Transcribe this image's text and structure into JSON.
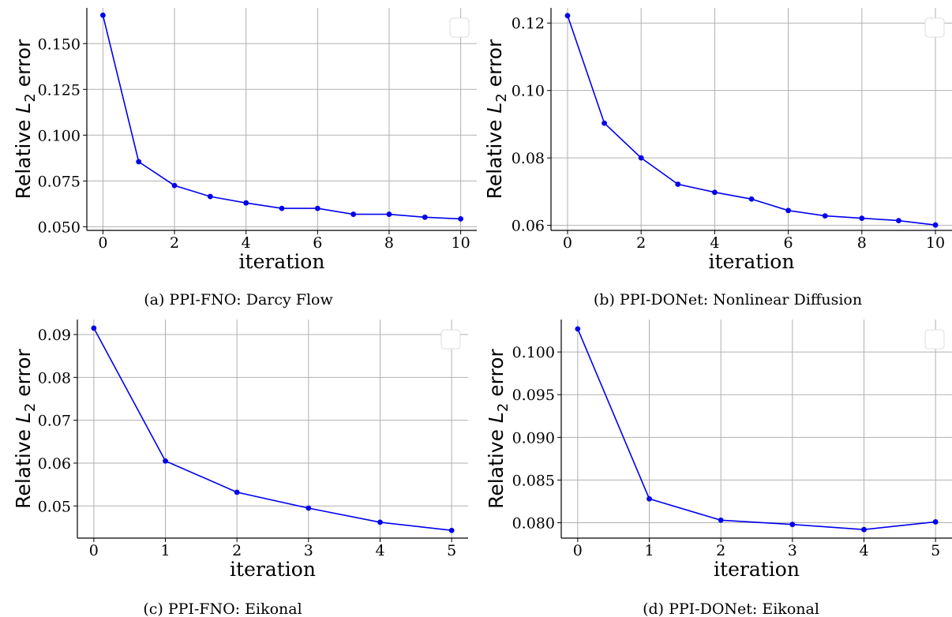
{
  "chart_data": [
    {
      "type": "line",
      "caption": "(a) PPI-FNO: Darcy Flow",
      "xlabel": "iteration",
      "ylabel": {
        "prefix": "Relative ",
        "var": "L",
        "sub": "2",
        "suffix": " error"
      },
      "x": [
        0,
        1,
        2,
        3,
        4,
        5,
        6,
        7,
        8,
        9,
        10
      ],
      "series": [
        {
          "values": [
            0.1655,
            0.0855,
            0.0725,
            0.0665,
            0.063,
            0.06,
            0.06,
            0.0568,
            0.0568,
            0.0552,
            0.0543
          ]
        }
      ],
      "xlim": [
        -0.45,
        10.45
      ],
      "ylim": [
        0.048,
        0.1695
      ],
      "xticks": [
        0,
        2,
        4,
        6,
        8,
        10
      ],
      "xtick_labels": [
        "0",
        "2",
        "4",
        "6",
        "8",
        "10"
      ],
      "yticks": [
        0.05,
        0.075,
        0.1,
        0.125,
        0.15
      ],
      "ytick_labels": [
        "0.050",
        "0.075",
        "0.100",
        "0.125",
        "0.150"
      ],
      "line_color": "#0000ee",
      "grid": true,
      "legend": "empty box, top-right"
    },
    {
      "type": "line",
      "caption": "(b) PPI-DONet: Nonlinear Diffusion",
      "xlabel": "iteration",
      "ylabel": {
        "prefix": "Relative ",
        "var": "L",
        "sub": "2",
        "suffix": " error"
      },
      "x": [
        0,
        1,
        2,
        3,
        4,
        5,
        6,
        7,
        8,
        9,
        10
      ],
      "series": [
        {
          "values": [
            0.1222,
            0.0903,
            0.08,
            0.0722,
            0.0698,
            0.0678,
            0.0644,
            0.0628,
            0.0621,
            0.0614,
            0.0601
          ]
        }
      ],
      "xlim": [
        -0.45,
        10.45
      ],
      "ylim": [
        0.0585,
        0.1245
      ],
      "xticks": [
        0,
        2,
        4,
        6,
        8,
        10
      ],
      "xtick_labels": [
        "0",
        "2",
        "4",
        "6",
        "8",
        "10"
      ],
      "yticks": [
        0.06,
        0.08,
        0.1,
        0.12
      ],
      "ytick_labels": [
        "0.06",
        "0.08",
        "0.10",
        "0.12"
      ],
      "line_color": "#0000ee",
      "grid": true,
      "legend": "empty box, top-right"
    },
    {
      "type": "line",
      "caption": "(c) PPI-FNO: Eikonal",
      "xlabel": "iteration",
      "ylabel": {
        "prefix": "Relative ",
        "var": "L",
        "sub": "2",
        "suffix": " error"
      },
      "x": [
        0,
        1,
        2,
        3,
        4,
        5
      ],
      "series": [
        {
          "values": [
            0.0915,
            0.0605,
            0.0532,
            0.0495,
            0.0462,
            0.0443
          ]
        }
      ],
      "xlim": [
        -0.23,
        5.23
      ],
      "ylim": [
        0.0425,
        0.0935
      ],
      "xticks": [
        0,
        1,
        2,
        3,
        4,
        5
      ],
      "xtick_labels": [
        "0",
        "1",
        "2",
        "3",
        "4",
        "5"
      ],
      "yticks": [
        0.05,
        0.06,
        0.07,
        0.08,
        0.09
      ],
      "ytick_labels": [
        "0.05",
        "0.06",
        "0.07",
        "0.08",
        "0.09"
      ],
      "line_color": "#0000ee",
      "grid": true,
      "legend": "empty box, top-right"
    },
    {
      "type": "line",
      "caption": "(d) PPI-DONet: Eikonal",
      "xlabel": "iteration",
      "ylabel": {
        "prefix": "Relative ",
        "var": "L",
        "sub": "2",
        "suffix": " error"
      },
      "x": [
        0,
        1,
        2,
        3,
        4,
        5
      ],
      "series": [
        {
          "values": [
            0.1027,
            0.0828,
            0.0803,
            0.0798,
            0.0792,
            0.0801
          ]
        }
      ],
      "xlim": [
        -0.23,
        5.23
      ],
      "ylim": [
        0.0782,
        0.1038
      ],
      "xticks": [
        0,
        1,
        2,
        3,
        4,
        5
      ],
      "xtick_labels": [
        "0",
        "1",
        "2",
        "3",
        "4",
        "5"
      ],
      "yticks": [
        0.08,
        0.085,
        0.09,
        0.095,
        0.1
      ],
      "ytick_labels": [
        "0.080",
        "0.085",
        "0.090",
        "0.095",
        "0.100"
      ],
      "line_color": "#0000ee",
      "grid": true,
      "legend": "empty box, top-right"
    }
  ]
}
